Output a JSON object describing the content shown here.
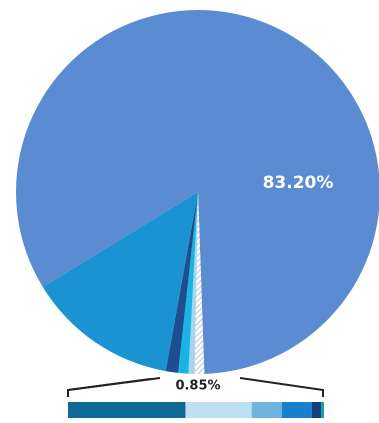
{
  "chart_data": [
    {
      "type": "pie",
      "values": [
        83.2,
        0.85,
        0.55,
        0.9,
        1.1,
        13.4
      ],
      "value_labels": [
        "83.20%",
        "0.85%",
        null,
        null,
        null,
        null
      ],
      "colors": [
        "#5b8bd0",
        "hatch",
        "#a8d4ec",
        "#16b5e6",
        "#1d4e8f",
        "#1b93d3"
      ]
    },
    {
      "type": "stacked-bar",
      "values": [
        0.39,
        0.22,
        0.1,
        0.1,
        0.03,
        0.01
      ],
      "colors": [
        "#0f6a98",
        "#bfe0f4",
        "#6fb3e0",
        "#1a7fcc",
        "#143f7a",
        "#1aa0a8"
      ]
    }
  ]
}
